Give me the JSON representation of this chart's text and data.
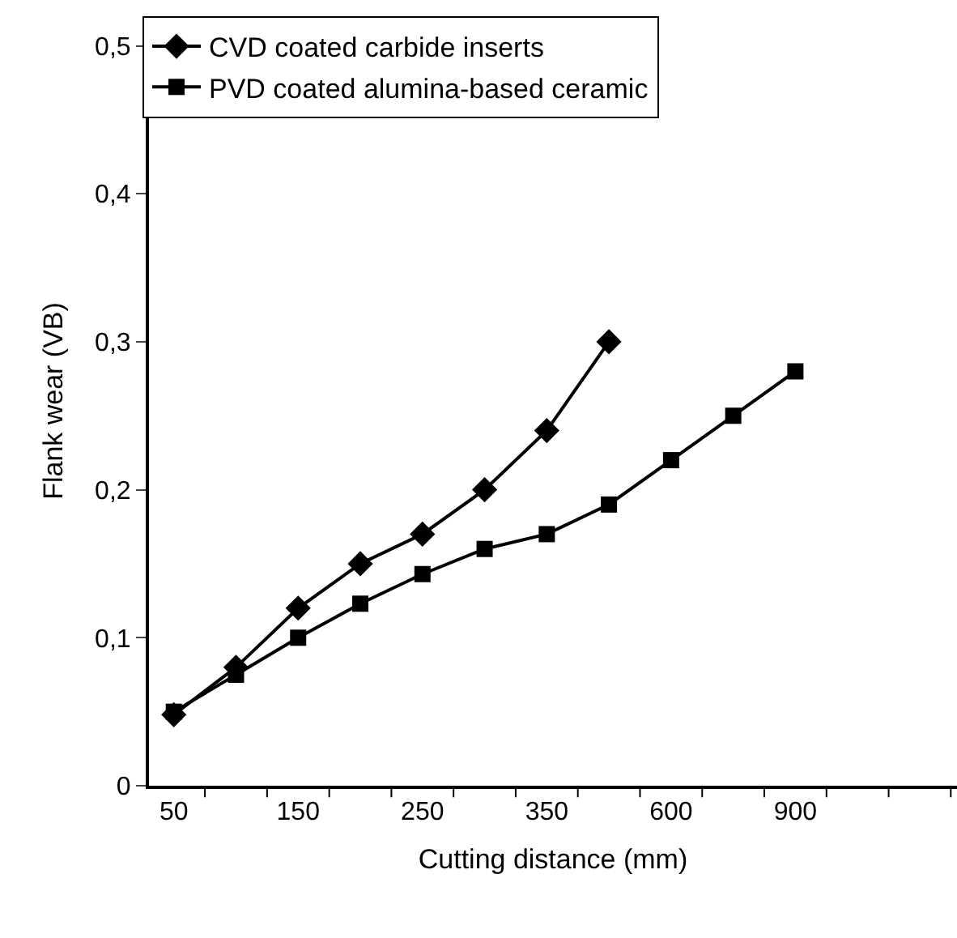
{
  "chart_data": {
    "type": "line",
    "xlabel": "Cutting distance (mm)",
    "ylabel": "Flank wear (VB)",
    "categories": [
      "50",
      null,
      "150",
      null,
      "250",
      null,
      "350",
      null,
      "600",
      null,
      "900",
      null,
      null
    ],
    "series": [
      {
        "name": "CVD coated carbide inserts",
        "color": "#000000",
        "marker": "diamond",
        "values": [
          0.048,
          0.08,
          0.12,
          0.15,
          0.17,
          0.2,
          0.24,
          0.3,
          null,
          null,
          null,
          null,
          null
        ]
      },
      {
        "name": "PVD coated alumina-based ceramic",
        "color": "#000000",
        "marker": "square",
        "values": [
          0.05,
          0.075,
          0.1,
          0.123,
          0.143,
          0.16,
          0.17,
          0.19,
          0.22,
          0.25,
          0.28,
          null,
          null
        ]
      }
    ],
    "ylim": [
      0,
      0.52
    ],
    "yticks": [
      {
        "value": 0,
        "label": "0"
      },
      {
        "value": 0.1,
        "label": "0,1"
      },
      {
        "value": 0.2,
        "label": "0,2"
      },
      {
        "value": 0.3,
        "label": "0,3"
      },
      {
        "value": 0.4,
        "label": "0,4"
      },
      {
        "value": 0.5,
        "label": "0,5"
      }
    ],
    "legend": "top",
    "line_style": "solid"
  }
}
